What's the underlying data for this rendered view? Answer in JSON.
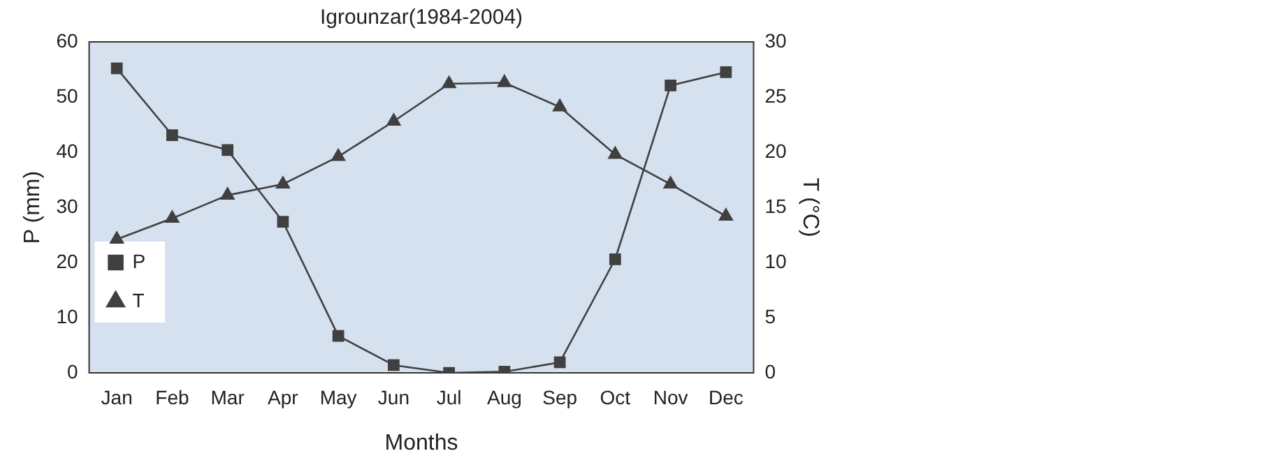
{
  "chart_data": {
    "type": "line",
    "title": "Igrounzar(1984-2004)",
    "xlabel": "Months",
    "ylabel": "P (mm)",
    "y2label": "T (°C)",
    "categories": [
      "Jan",
      "Feb",
      "Mar",
      "Apr",
      "May",
      "Jun",
      "Jul",
      "Aug",
      "Sep",
      "Oct",
      "Nov",
      "Dec"
    ],
    "series": [
      {
        "name": "P",
        "color": "#404040",
        "marker": "square",
        "values": [
          55.2,
          43.1,
          40.4,
          27.4,
          6.7,
          1.4,
          0,
          0.2,
          1.9,
          20.6,
          52.1,
          54.5
        ]
      },
      {
        "name": "T",
        "color": "#404040",
        "marker": "triangle",
        "axis": "y2",
        "values": [
          12.1,
          14.0,
          16.1,
          17.1,
          19.6,
          22.8,
          26.2,
          26.3,
          24.1,
          19.8,
          17.1,
          14.2
        ]
      }
    ],
    "ylim": [
      0,
      60
    ],
    "yticks": [
      0,
      10,
      20,
      30,
      40,
      50,
      60
    ],
    "y2lim": [
      0,
      30
    ],
    "y2ticks": [
      0,
      5,
      10,
      15,
      20,
      25,
      30
    ],
    "grid": false,
    "legend": "bottom left",
    "line_style": "solid"
  }
}
